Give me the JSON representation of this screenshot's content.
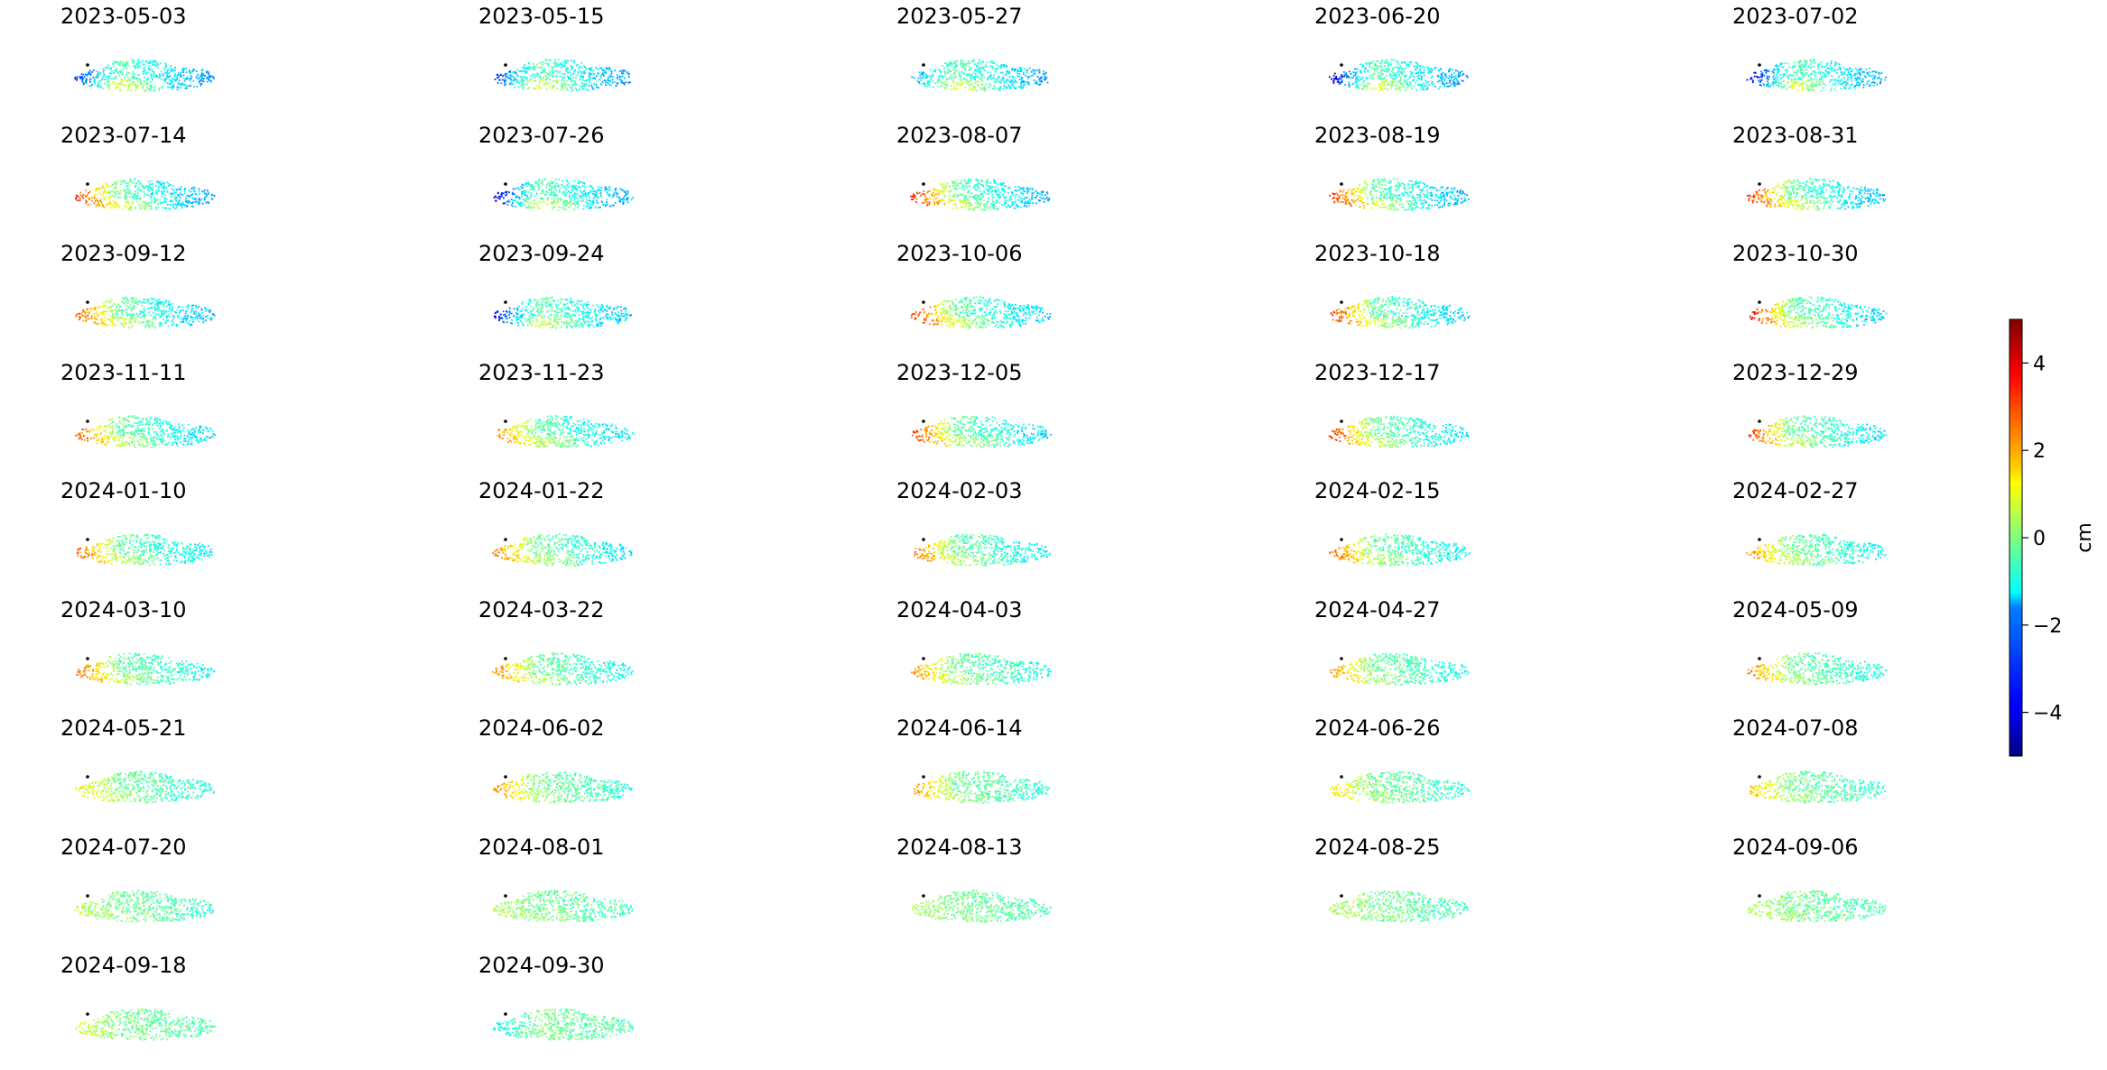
{
  "chart_data": {
    "type": "heatmap",
    "description_units": "cm",
    "dates": [
      "2023-05-03",
      "2023-05-15",
      "2023-05-27",
      "2023-06-20",
      "2023-07-02",
      "2023-07-14",
      "2023-07-26",
      "2023-08-07",
      "2023-08-19",
      "2023-08-31",
      "2023-09-12",
      "2023-09-24",
      "2023-10-06",
      "2023-10-18",
      "2023-10-30",
      "2023-11-11",
      "2023-11-23",
      "2023-12-05",
      "2023-12-17",
      "2023-12-29",
      "2024-01-10",
      "2024-01-22",
      "2024-02-03",
      "2024-02-15",
      "2024-02-27",
      "2024-03-10",
      "2024-03-22",
      "2024-04-03",
      "2024-04-27",
      "2024-05-09",
      "2024-05-21",
      "2024-06-02",
      "2024-06-14",
      "2024-06-26",
      "2024-07-08",
      "2024-07-20",
      "2024-08-01",
      "2024-08-13",
      "2024-08-25",
      "2024-09-06",
      "2024-09-18",
      "2024-09-30"
    ],
    "west_end_displacement_cm": [
      -3.5,
      -3.5,
      -2.5,
      -4.5,
      -4.5,
      3.5,
      -4.5,
      3.5,
      3.5,
      3.5,
      3.0,
      -4.0,
      3.5,
      3.5,
      4.0,
      3.0,
      2.5,
      3.5,
      3.5,
      3.5,
      3.0,
      2.5,
      3.0,
      3.0,
      2.5,
      3.0,
      2.5,
      2.5,
      2.5,
      2.5,
      1.5,
      2.5,
      2.5,
      1.5,
      2.0,
      0.5,
      0.5,
      0.5,
      0.5,
      0.5,
      1.0,
      -1.5
    ],
    "colorbar": {
      "label": "cm",
      "range": [
        -5,
        5
      ],
      "ticks": [
        4,
        2,
        0,
        -2,
        -4
      ],
      "tick_labels": [
        "4",
        "2",
        "0",
        "−2",
        "−4"
      ],
      "colormap": "jet"
    },
    "layout": "grid of 5 columns"
  }
}
